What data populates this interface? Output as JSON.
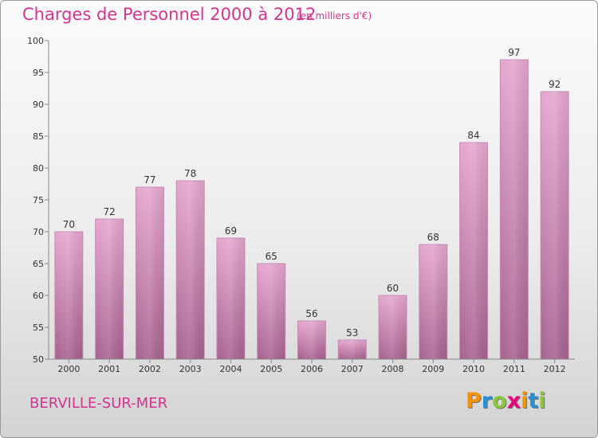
{
  "title": "Charges de Personnel 2000 à 2012",
  "subtitle": "(en milliers d'€)",
  "commune": "BERVILLE-SUR-MER",
  "logo": {
    "text": "Proxiti",
    "letters": [
      "P",
      "r",
      "o",
      "x",
      "i",
      "t",
      "i"
    ],
    "colors": [
      "#f39200",
      "#2b8ed0",
      "#8cc63f",
      "#e6007e",
      "#f39200",
      "#2b8ed0",
      "#8cc63f"
    ]
  },
  "colors": {
    "accent": "#d2348f",
    "bar_top": "#e6a6cf",
    "bar_bottom": "#a6628f"
  },
  "chart_data": {
    "type": "bar",
    "categories": [
      "2000",
      "2001",
      "2002",
      "2003",
      "2004",
      "2005",
      "2006",
      "2007",
      "2008",
      "2009",
      "2010",
      "2011",
      "2012"
    ],
    "values": [
      70,
      72,
      77,
      78,
      69,
      65,
      56,
      53,
      60,
      68,
      84,
      97,
      92
    ],
    "ylim": [
      50,
      100
    ],
    "yticks": [
      50,
      55,
      60,
      65,
      70,
      75,
      80,
      85,
      90,
      95,
      100
    ],
    "grid": false,
    "data_labels": true
  }
}
